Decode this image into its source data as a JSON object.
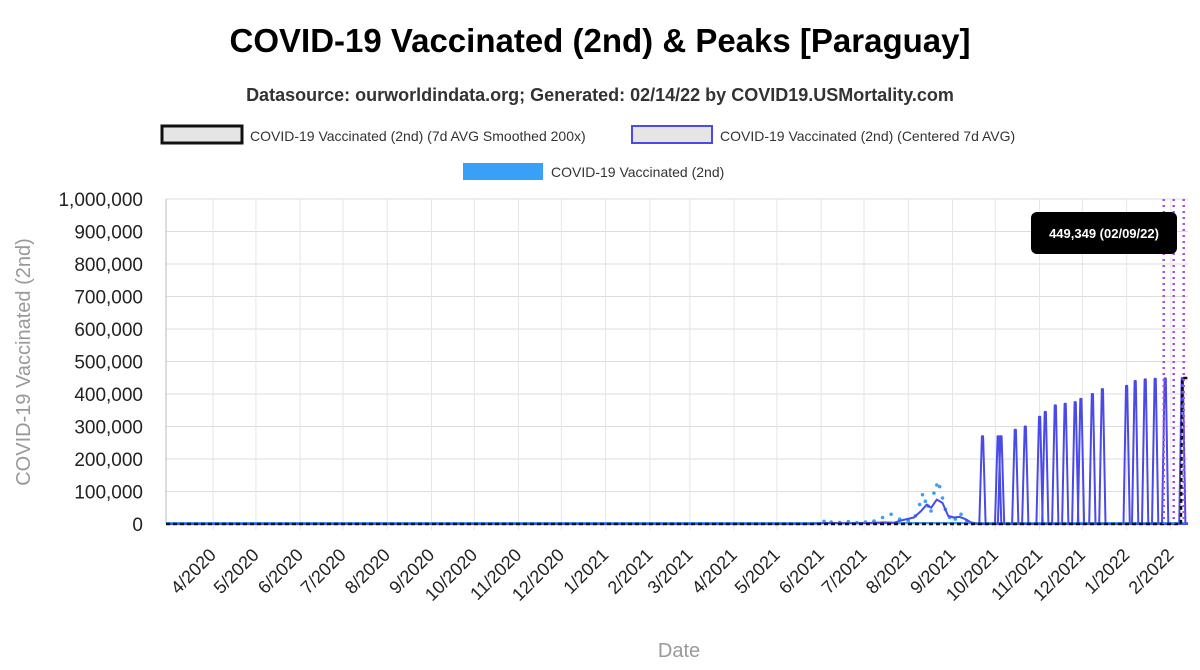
{
  "chart_data": {
    "type": "line",
    "title": "COVID-19 Vaccinated (2nd) & Peaks [Paraguay]",
    "subtitle": "Datasource: ourworldindata.org; Generated: 02/14/22 by COVID19.USMortality.com",
    "xlabel": "Date",
    "ylabel": "COVID-19 Vaccinated (2nd)",
    "x_range": [
      "2020-02-28",
      "2022-02-13"
    ],
    "ylim": [
      0,
      1000000
    ],
    "y_ticks": [
      0,
      100000,
      200000,
      300000,
      400000,
      500000,
      600000,
      700000,
      800000,
      900000,
      1000000
    ],
    "y_tick_labels": [
      "0",
      "100,000",
      "200,000",
      "300,000",
      "400,000",
      "500,000",
      "600,000",
      "700,000",
      "800,000",
      "900,000",
      "1,000,000"
    ],
    "x_ticks": [
      "2020-04-01",
      "2020-05-01",
      "2020-06-01",
      "2020-07-01",
      "2020-08-01",
      "2020-09-01",
      "2020-10-01",
      "2020-11-01",
      "2020-12-01",
      "2021-01-01",
      "2021-02-01",
      "2021-03-01",
      "2021-04-01",
      "2021-05-01",
      "2021-06-01",
      "2021-07-01",
      "2021-08-01",
      "2021-09-01",
      "2021-10-01",
      "2021-11-01",
      "2021-12-01",
      "2022-01-01",
      "2022-02-01"
    ],
    "x_tick_labels": [
      "4/2020",
      "5/2020",
      "6/2020",
      "7/2020",
      "8/2020",
      "9/2020",
      "10/2020",
      "11/2020",
      "12/2020",
      "1/2021",
      "2/2021",
      "3/2021",
      "4/2021",
      "5/2021",
      "6/2021",
      "7/2021",
      "8/2021",
      "9/2021",
      "10/2021",
      "11/2021",
      "12/2021",
      "1/2022",
      "2/2022"
    ],
    "grid": true,
    "legend_position": "top",
    "colors": {
      "smoothed": "#111111",
      "centered": "#4a4ae8",
      "daily": "#3aa0f7",
      "peak_marker": "#a14ff0"
    },
    "series": [
      {
        "name": "COVID-19 Vaccinated (2nd) (7d AVG Smoothed 200x)",
        "style": "dashed",
        "points": [
          [
            "2020-02-28",
            0
          ],
          [
            "2022-02-08",
            0
          ],
          [
            "2022-02-09",
            449349
          ],
          [
            "2022-02-13",
            449349
          ]
        ]
      },
      {
        "name": "COVID-19 Vaccinated (2nd) (Centered 7d AVG)",
        "style": "line",
        "points": [
          [
            "2020-02-28",
            0
          ],
          [
            "2021-05-25",
            0
          ],
          [
            "2021-06-05",
            3000
          ],
          [
            "2021-06-20",
            2000
          ],
          [
            "2021-07-05",
            3000
          ],
          [
            "2021-07-15",
            5000
          ],
          [
            "2021-07-22",
            4000
          ],
          [
            "2021-07-28",
            12000
          ],
          [
            "2021-08-05",
            20000
          ],
          [
            "2021-08-10",
            40000
          ],
          [
            "2021-08-14",
            60000
          ],
          [
            "2021-08-17",
            50000
          ],
          [
            "2021-08-21",
            75000
          ],
          [
            "2021-08-25",
            65000
          ],
          [
            "2021-08-29",
            25000
          ],
          [
            "2021-09-02",
            20000
          ],
          [
            "2021-09-06",
            22000
          ],
          [
            "2021-09-10",
            15000
          ],
          [
            "2021-09-14",
            5000
          ],
          [
            "2021-09-18",
            0
          ]
        ],
        "spikes": [
          [
            "2021-09-22",
            270000
          ],
          [
            "2021-10-03",
            270000
          ],
          [
            "2021-10-05",
            270000
          ],
          [
            "2021-10-15",
            290000
          ],
          [
            "2021-10-22",
            300000
          ],
          [
            "2021-11-01",
            330000
          ],
          [
            "2021-11-05",
            345000
          ],
          [
            "2021-11-12",
            365000
          ],
          [
            "2021-11-19",
            370000
          ],
          [
            "2021-11-26",
            375000
          ],
          [
            "2021-11-30",
            385000
          ],
          [
            "2021-12-08",
            400000
          ],
          [
            "2021-12-15",
            415000
          ],
          [
            "2022-01-01",
            425000
          ],
          [
            "2022-01-07",
            440000
          ],
          [
            "2022-01-14",
            445000
          ],
          [
            "2022-01-21",
            447000
          ],
          [
            "2022-01-28",
            448000
          ],
          [
            "2022-02-09",
            449349
          ]
        ]
      },
      {
        "name": "COVID-19 Vaccinated (2nd)",
        "style": "dots",
        "points": [
          [
            "2021-06-03",
            8000
          ],
          [
            "2021-06-08",
            6000
          ],
          [
            "2021-06-14",
            5000
          ],
          [
            "2021-06-20",
            7000
          ],
          [
            "2021-06-26",
            4000
          ],
          [
            "2021-07-02",
            6000
          ],
          [
            "2021-07-08",
            9000
          ],
          [
            "2021-07-14",
            20000
          ],
          [
            "2021-07-20",
            30000
          ],
          [
            "2021-07-26",
            15000
          ],
          [
            "2021-08-01",
            10000
          ],
          [
            "2021-08-06",
            25000
          ],
          [
            "2021-08-09",
            60000
          ],
          [
            "2021-08-11",
            90000
          ],
          [
            "2021-08-13",
            70000
          ],
          [
            "2021-08-15",
            55000
          ],
          [
            "2021-08-17",
            40000
          ],
          [
            "2021-08-19",
            95000
          ],
          [
            "2021-08-21",
            120000
          ],
          [
            "2021-08-23",
            115000
          ],
          [
            "2021-08-25",
            80000
          ],
          [
            "2021-08-27",
            45000
          ],
          [
            "2021-08-30",
            20000
          ],
          [
            "2021-09-03",
            15000
          ],
          [
            "2021-09-07",
            30000
          ],
          [
            "2021-09-11",
            10000
          ]
        ]
      }
    ],
    "peak_markers": [
      "2022-01-27",
      "2022-02-03",
      "2022-02-10"
    ],
    "tooltip": "449,349 (02/09/22)"
  }
}
